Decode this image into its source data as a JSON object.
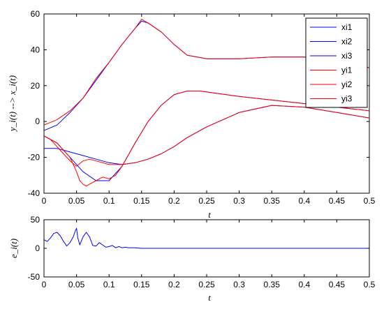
{
  "chart_data": [
    {
      "type": "line",
      "xlabel": "t",
      "ylabel": "y_i(t) --> x_i(t)",
      "xlim": [
        0,
        0.5
      ],
      "ylim": [
        -40,
        60
      ],
      "xticks": [
        "0",
        "0.05",
        "0.1",
        "0.15",
        "0.2",
        "0.25",
        "0.3",
        "0.35",
        "0.4",
        "0.45",
        "0.5"
      ],
      "yticks": [
        "-40",
        "-20",
        "0",
        "20",
        "40",
        "60"
      ],
      "grid": false,
      "legend_position": "top-right",
      "series": [
        {
          "name": "xi1",
          "color": "#0000ff",
          "x": [
            0,
            0.02,
            0.04,
            0.06,
            0.08,
            0.1,
            0.12,
            0.14,
            0.15,
            0.16,
            0.18,
            0.2,
            0.22,
            0.25,
            0.3,
            0.35,
            0.4,
            0.45,
            0.5
          ],
          "y": [
            -5,
            -2,
            5,
            13,
            23,
            33,
            43,
            52,
            56,
            55,
            50,
            43,
            37,
            35,
            35,
            36,
            36,
            34,
            30
          ]
        },
        {
          "name": "xi2",
          "color": "#0000ff",
          "x": [
            0,
            0.02,
            0.04,
            0.06,
            0.08,
            0.1,
            0.12,
            0.14,
            0.16,
            0.18,
            0.2,
            0.22,
            0.24,
            0.26,
            0.3,
            0.35,
            0.4,
            0.45,
            0.5
          ],
          "y": [
            -8,
            -12,
            -20,
            -28,
            -33,
            -33,
            -25,
            -12,
            0,
            9,
            15,
            17,
            17,
            16,
            14,
            12,
            10,
            8,
            6
          ]
        },
        {
          "name": "xi3",
          "color": "#0000ff",
          "x": [
            0,
            0.02,
            0.04,
            0.06,
            0.08,
            0.1,
            0.12,
            0.14,
            0.16,
            0.18,
            0.2,
            0.22,
            0.25,
            0.3,
            0.35,
            0.4,
            0.45,
            0.5
          ],
          "y": [
            -15,
            -15,
            -17,
            -19,
            -21,
            -23,
            -24,
            -23,
            -21,
            -18,
            -14,
            -9,
            -3,
            5,
            9,
            8,
            5,
            2
          ]
        },
        {
          "name": "yi1",
          "color": "#ff0000",
          "x": [
            0,
            0.02,
            0.04,
            0.06,
            0.08,
            0.1,
            0.12,
            0.14,
            0.15,
            0.16,
            0.18,
            0.2,
            0.22,
            0.25,
            0.3,
            0.35,
            0.4,
            0.45,
            0.5
          ],
          "y": [
            -2,
            1,
            6,
            13,
            24,
            33,
            43,
            52,
            57,
            55,
            50,
            43,
            37,
            35,
            35,
            36,
            36,
            34,
            30
          ]
        },
        {
          "name": "yi2",
          "color": "#ff0000",
          "x": [
            0,
            0.02,
            0.04,
            0.05,
            0.055,
            0.06,
            0.065,
            0.07,
            0.08,
            0.09,
            0.1,
            0.11,
            0.12,
            0.14,
            0.16,
            0.18,
            0.2,
            0.22,
            0.24,
            0.26,
            0.3,
            0.35,
            0.4,
            0.45,
            0.5
          ],
          "y": [
            -8,
            -12,
            -20,
            -28,
            -33,
            -35,
            -36,
            -35,
            -33,
            -31,
            -32,
            -30,
            -25,
            -12,
            0,
            9,
            15,
            17,
            17,
            16,
            14,
            12,
            10,
            8,
            6
          ]
        },
        {
          "name": "yi3",
          "color": "#ff0000",
          "x": [
            0,
            0.01,
            0.02,
            0.03,
            0.04,
            0.05,
            0.06,
            0.07,
            0.08,
            0.09,
            0.1,
            0.12,
            0.14,
            0.16,
            0.18,
            0.2,
            0.22,
            0.25,
            0.3,
            0.35,
            0.4,
            0.45,
            0.5
          ],
          "y": [
            -8,
            -10,
            -14,
            -18,
            -22,
            -25,
            -22,
            -21,
            -22,
            -23,
            -24,
            -24,
            -23,
            -21,
            -18,
            -14,
            -9,
            -3,
            5,
            9,
            8,
            5,
            2
          ]
        }
      ]
    },
    {
      "type": "line",
      "xlabel": "t",
      "ylabel": "e_i(t)",
      "xlim": [
        0,
        0.5
      ],
      "ylim": [
        -50,
        50
      ],
      "xticks": [
        "0",
        "0.05",
        "0.1",
        "0.15",
        "0.2",
        "0.25",
        "0.3",
        "0.35",
        "0.4",
        "0.45",
        "0.5"
      ],
      "yticks": [
        "-50",
        "0",
        "50"
      ],
      "grid": false,
      "series": [
        {
          "name": "",
          "color": "#0000ff",
          "x": [
            0,
            0.005,
            0.01,
            0.015,
            0.02,
            0.025,
            0.03,
            0.035,
            0.04,
            0.045,
            0.048,
            0.05,
            0.052,
            0.055,
            0.06,
            0.065,
            0.07,
            0.075,
            0.08,
            0.085,
            0.09,
            0.095,
            0.1,
            0.105,
            0.11,
            0.115,
            0.12,
            0.125,
            0.13,
            0.14,
            0.15,
            0.2,
            0.25,
            0.3,
            0.35,
            0.4,
            0.45,
            0.5
          ],
          "y": [
            15,
            12,
            18,
            26,
            28,
            22,
            12,
            4,
            10,
            20,
            30,
            35,
            18,
            6,
            20,
            28,
            20,
            5,
            4,
            10,
            6,
            2,
            3,
            5,
            1,
            3,
            1,
            2,
            1,
            1,
            0,
            0,
            0,
            0,
            0,
            0,
            0,
            0
          ]
        }
      ]
    }
  ]
}
